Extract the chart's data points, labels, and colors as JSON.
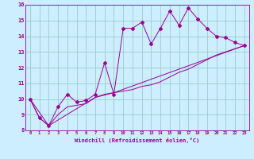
{
  "xlabel": "Windchill (Refroidissement éolien,°C)",
  "background_color": "#cceeff",
  "grid_color": "#99cccc",
  "line_color": "#990099",
  "xlim": [
    -0.5,
    23.5
  ],
  "ylim": [
    8,
    16
  ],
  "xtick_vals": [
    0,
    1,
    2,
    3,
    4,
    5,
    6,
    7,
    8,
    9,
    10,
    11,
    12,
    13,
    14,
    15,
    16,
    17,
    18,
    19,
    20,
    21,
    22,
    23
  ],
  "xtick_labels": [
    "0",
    "1",
    "2",
    "3",
    "4",
    "5",
    "6",
    "7",
    "8",
    "9",
    "10",
    "11",
    "12",
    "13",
    "14",
    "15",
    "16",
    "17",
    "18",
    "19",
    "20",
    "21",
    "22",
    "23"
  ],
  "ytick_vals": [
    8,
    9,
    10,
    11,
    12,
    13,
    14,
    15,
    16
  ],
  "ytick_labels": [
    "8",
    "9",
    "10",
    "11",
    "12",
    "13",
    "14",
    "15",
    "16"
  ],
  "series1_x": [
    0,
    1,
    2,
    3,
    4,
    5,
    6,
    7,
    8,
    9,
    10,
    11,
    12,
    13,
    14,
    15,
    16,
    17,
    18,
    19,
    20,
    21,
    22,
    23
  ],
  "series1_y": [
    10.0,
    8.8,
    8.3,
    9.5,
    10.3,
    9.8,
    9.9,
    10.3,
    12.3,
    10.3,
    14.5,
    14.5,
    14.9,
    13.5,
    14.5,
    15.6,
    14.7,
    15.8,
    15.1,
    14.5,
    14.0,
    13.9,
    13.6,
    13.4
  ],
  "series2_x": [
    0,
    1,
    2,
    3,
    4,
    5,
    6,
    7,
    8,
    9,
    10,
    11,
    12,
    13,
    14,
    15,
    16,
    17,
    18,
    19,
    20,
    21,
    22,
    23
  ],
  "series2_y": [
    10.0,
    8.8,
    8.3,
    9.0,
    9.5,
    9.6,
    9.7,
    10.1,
    10.3,
    10.4,
    10.5,
    10.6,
    10.8,
    10.9,
    11.1,
    11.4,
    11.7,
    11.9,
    12.2,
    12.5,
    12.8,
    13.0,
    13.2,
    13.4
  ],
  "series3_x": [
    0,
    2,
    7,
    9,
    23
  ],
  "series3_y": [
    10.0,
    8.3,
    10.1,
    10.4,
    13.4
  ]
}
